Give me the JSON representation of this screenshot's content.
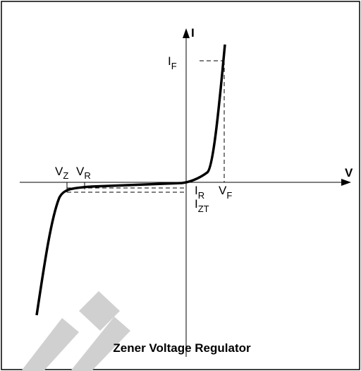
{
  "axes": {
    "y": "I",
    "x": "V"
  },
  "labels": {
    "i_f": {
      "main": "I",
      "sub": "F"
    },
    "v_z": {
      "main": "V",
      "sub": "Z"
    },
    "v_r": {
      "main": "V",
      "sub": "R"
    },
    "v_f": {
      "main": "V",
      "sub": "F"
    },
    "i_r": {
      "main": "I",
      "sub": "R"
    },
    "i_zt": {
      "main": "I",
      "sub": "ZT"
    }
  },
  "title": "Zener Voltage Regulator"
}
